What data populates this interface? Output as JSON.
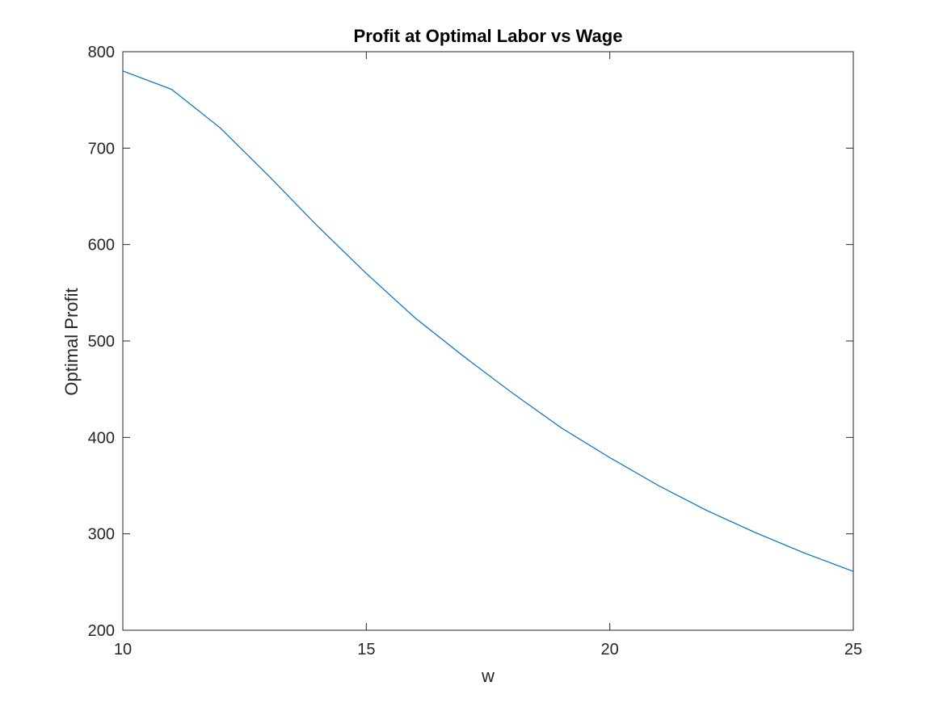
{
  "chart_data": {
    "type": "line",
    "title": "Profit at Optimal Labor vs Wage",
    "xlabel": "w",
    "ylabel": "Optimal Profit",
    "xlim": [
      10,
      25
    ],
    "ylim": [
      200,
      800
    ],
    "xticks": [
      10,
      15,
      20,
      25
    ],
    "yticks": [
      200,
      300,
      400,
      500,
      600,
      700,
      800
    ],
    "grid": false,
    "series": [
      {
        "color": "#0072BD",
        "x": [
          10,
          11,
          12,
          13,
          14,
          15,
          16,
          17,
          18,
          19,
          20,
          21,
          22,
          23,
          24,
          25
        ],
        "y": [
          780,
          761,
          721,
          671,
          619,
          570,
          524,
          484,
          446,
          410,
          379,
          350,
          324,
          301,
          280,
          261
        ]
      }
    ]
  }
}
